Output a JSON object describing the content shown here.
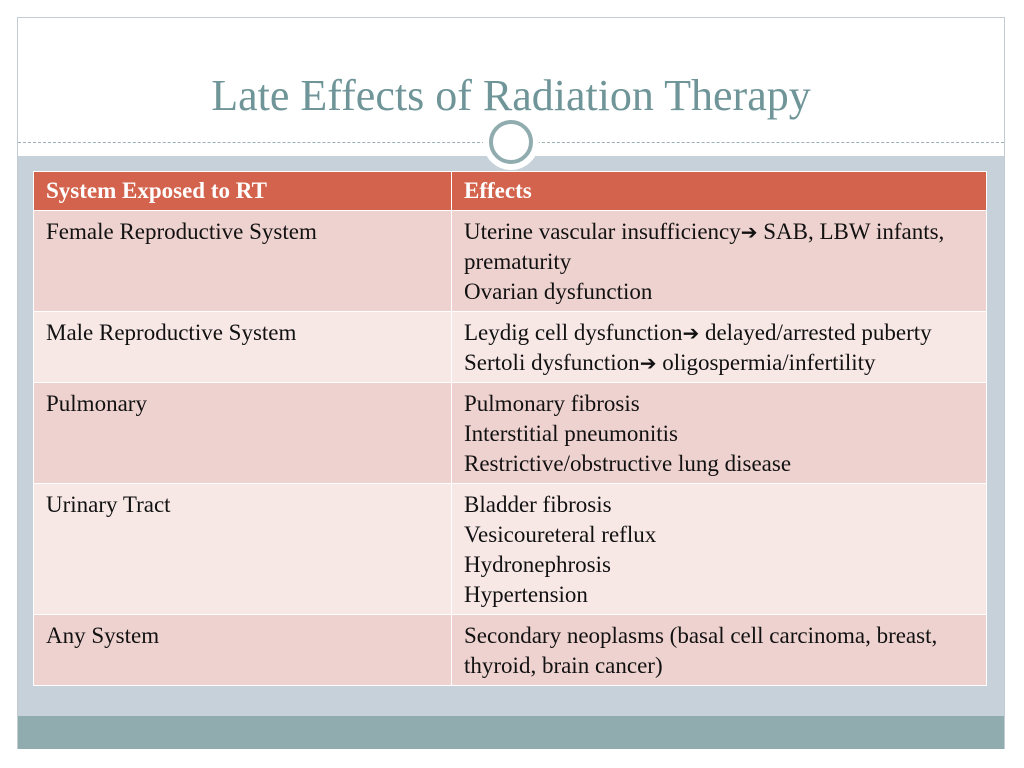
{
  "slide": {
    "title": "Late Effects of Radiation Therapy"
  },
  "table": {
    "headers": [
      "System Exposed to RT",
      "Effects"
    ],
    "rows": [
      {
        "system": "Female Reproductive System",
        "effects": [
          {
            "text": "Uterine vascular insufficiency",
            "arrow": "➔",
            "after": " SAB, LBW infants, prematurity"
          },
          {
            "text": "Ovarian dysfunction"
          }
        ]
      },
      {
        "system": "Male Reproductive System",
        "effects": [
          {
            "text": "Leydig cell dysfunction",
            "arrow": "➔",
            "after": " delayed/arrested puberty"
          },
          {
            "text": "Sertoli dysfunction",
            "arrow": "➔",
            "after": " oligospermia/infertility"
          }
        ]
      },
      {
        "system": "Pulmonary",
        "effects": [
          {
            "text": "Pulmonary fibrosis"
          },
          {
            "text": "Interstitial pneumonitis"
          },
          {
            "text": "Restrictive/obstructive lung disease"
          }
        ]
      },
      {
        "system": "Urinary Tract",
        "effects": [
          {
            "text": "Bladder fibrosis"
          },
          {
            "text": "Vesicoureteral reflux"
          },
          {
            "text": "Hydronephrosis"
          },
          {
            "text": "Hypertension"
          }
        ]
      },
      {
        "system": "Any System",
        "effects": [
          {
            "text": "Secondary neoplasms (basal cell carcinoma, breast, thyroid, brain cancer)"
          }
        ]
      }
    ]
  },
  "colors": {
    "title": "#6f9598",
    "header_bg": "#d3634c",
    "row_odd": "#eed2cf",
    "row_even": "#f7e8e6",
    "band": "#c7d1d9",
    "accent": "#90acaf"
  }
}
